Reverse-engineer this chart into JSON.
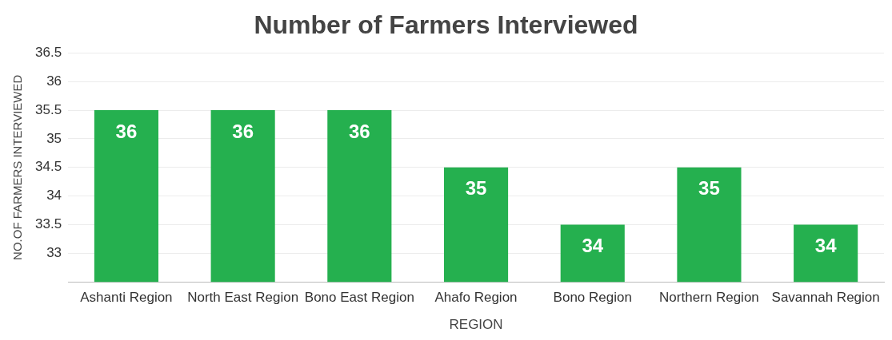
{
  "chart_data": {
    "type": "bar",
    "title": "Number of Farmers Interviewed",
    "xlabel": "REGION",
    "ylabel": "NO.OF FARMERS INTERVIEWED",
    "categories": [
      "Ashanti Region",
      "North East Region",
      "Bono East Region",
      "Ahafo Region",
      "Bono Region",
      "Northern Region",
      "Savannah Region"
    ],
    "values": [
      35.5,
      35.5,
      35.5,
      34.5,
      33.5,
      34.5,
      33.5
    ],
    "value_labels": [
      "36",
      "36",
      "36",
      "35",
      "34",
      "35",
      "34"
    ],
    "color": "#25b04f",
    "ylim": [
      32.5,
      36.5
    ],
    "yticks": [
      33,
      33.5,
      34,
      34.5,
      35,
      35.5,
      36,
      36.5
    ],
    "grid": "y",
    "legend": false
  }
}
